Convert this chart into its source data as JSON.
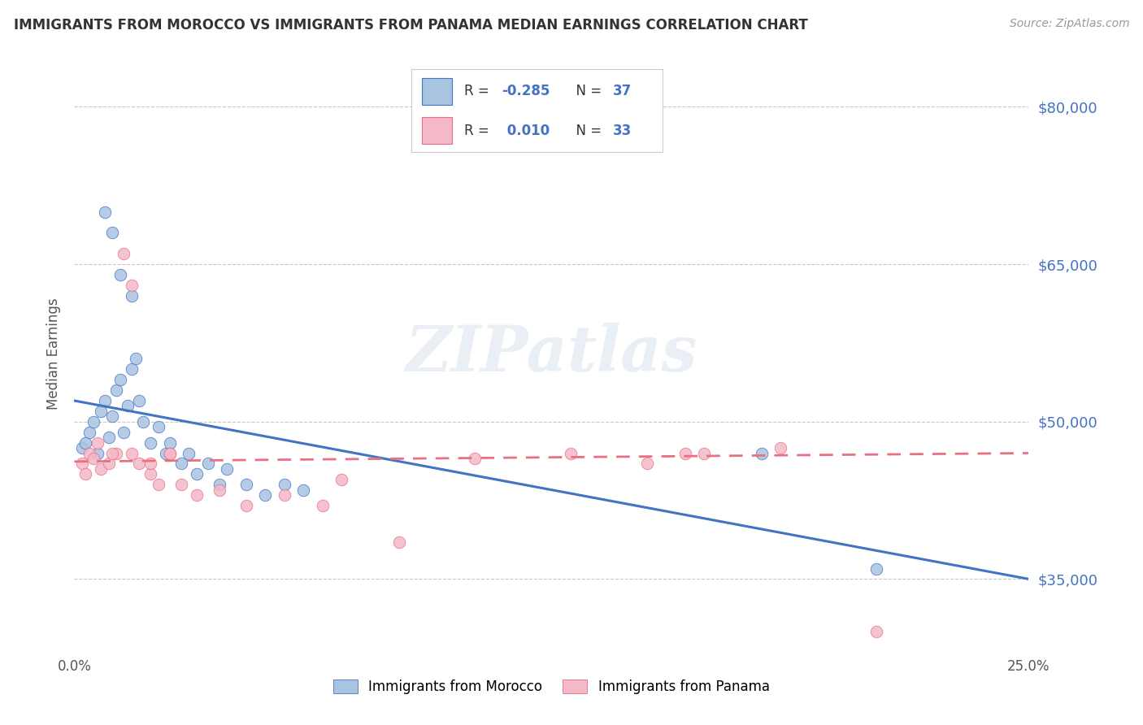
{
  "title": "IMMIGRANTS FROM MOROCCO VS IMMIGRANTS FROM PANAMA MEDIAN EARNINGS CORRELATION CHART",
  "source": "Source: ZipAtlas.com",
  "ylabel": "Median Earnings",
  "xlim": [
    0.0,
    0.25
  ],
  "ylim": [
    28000,
    85000
  ],
  "yticks": [
    35000,
    50000,
    65000,
    80000
  ],
  "ytick_labels": [
    "$35,000",
    "$50,000",
    "$65,000",
    "$80,000"
  ],
  "xticks": [
    0.0,
    0.05,
    0.1,
    0.15,
    0.2,
    0.25
  ],
  "xtick_labels": [
    "0.0%",
    "",
    "",
    "",
    "",
    "25.0%"
  ],
  "r_morocco": -0.285,
  "n_morocco": 37,
  "r_panama": 0.01,
  "n_panama": 33,
  "morocco_color": "#a8c4e0",
  "panama_color": "#f4b8c8",
  "morocco_line_color": "#4472c4",
  "panama_line_color": "#e87080",
  "background_color": "#ffffff",
  "grid_color": "#c8c8c8",
  "watermark_text": "ZIPatlas",
  "morocco_scatter_x": [
    0.002,
    0.003,
    0.004,
    0.005,
    0.006,
    0.007,
    0.008,
    0.009,
    0.01,
    0.011,
    0.012,
    0.013,
    0.014,
    0.015,
    0.016,
    0.017,
    0.018,
    0.02,
    0.022,
    0.024,
    0.025,
    0.028,
    0.03,
    0.032,
    0.035,
    0.038,
    0.04,
    0.045,
    0.05,
    0.055,
    0.06,
    0.008,
    0.01,
    0.012,
    0.015,
    0.18,
    0.21
  ],
  "morocco_scatter_y": [
    47500,
    48000,
    49000,
    50000,
    47000,
    51000,
    52000,
    48500,
    50500,
    53000,
    54000,
    49000,
    51500,
    55000,
    56000,
    52000,
    50000,
    48000,
    49500,
    47000,
    48000,
    46000,
    47000,
    45000,
    46000,
    44000,
    45500,
    44000,
    43000,
    44000,
    43500,
    70000,
    68000,
    64000,
    62000,
    47000,
    36000
  ],
  "panama_scatter_x": [
    0.002,
    0.003,
    0.004,
    0.005,
    0.006,
    0.007,
    0.009,
    0.011,
    0.013,
    0.015,
    0.017,
    0.02,
    0.022,
    0.025,
    0.028,
    0.032,
    0.038,
    0.045,
    0.055,
    0.07,
    0.085,
    0.01,
    0.015,
    0.02,
    0.025,
    0.15,
    0.16,
    0.185,
    0.065,
    0.105,
    0.13,
    0.165,
    0.21
  ],
  "panama_scatter_y": [
    46000,
    45000,
    47000,
    46500,
    48000,
    45500,
    46000,
    47000,
    66000,
    63000,
    46000,
    45000,
    44000,
    47000,
    44000,
    43000,
    43500,
    42000,
    43000,
    44500,
    38500,
    47000,
    47000,
    46000,
    47000,
    46000,
    47000,
    47500,
    42000,
    46500,
    47000,
    47000,
    30000
  ],
  "legend_r_color": "#4472c4",
  "legend_n_color": "#4472c4"
}
